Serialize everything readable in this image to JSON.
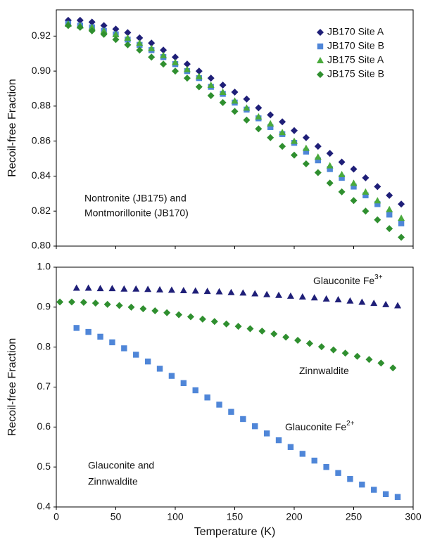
{
  "chart_data": [
    {
      "type": "scatter",
      "y_label": "Recoil-free Fraction",
      "annotation": [
        "Nontronite (JB175) and",
        "Montmorillonite (JB170)"
      ],
      "legend": "upper right",
      "x": [
        10,
        20,
        30,
        40,
        50,
        60,
        70,
        80,
        90,
        100,
        110,
        120,
        130,
        140,
        150,
        160,
        170,
        180,
        190,
        200,
        210,
        220,
        230,
        240,
        250,
        260,
        270,
        280,
        290
      ],
      "series": [
        {
          "name": "JB170 Site A",
          "color": "#1f1f78",
          "marker": "diamond",
          "values": [
            0.929,
            0.929,
            0.928,
            0.926,
            0.924,
            0.922,
            0.919,
            0.916,
            0.912,
            0.908,
            0.904,
            0.9,
            0.896,
            0.892,
            0.888,
            0.884,
            0.879,
            0.875,
            0.871,
            0.866,
            0.862,
            0.857,
            0.853,
            0.848,
            0.844,
            0.839,
            0.834,
            0.829,
            0.824
          ]
        },
        {
          "name": "JB170 Site B",
          "color": "#4f86d8",
          "marker": "square",
          "values": [
            0.927,
            0.926,
            0.925,
            0.923,
            0.921,
            0.918,
            0.915,
            0.912,
            0.908,
            0.904,
            0.9,
            0.896,
            0.891,
            0.887,
            0.882,
            0.878,
            0.873,
            0.868,
            0.864,
            0.859,
            0.854,
            0.849,
            0.844,
            0.839,
            0.834,
            0.829,
            0.824,
            0.818,
            0.813
          ]
        },
        {
          "name": "JB175 Site A",
          "color": "#4aaa3c",
          "marker": "triangle",
          "values": [
            0.927,
            0.926,
            0.925,
            0.923,
            0.921,
            0.919,
            0.916,
            0.913,
            0.909,
            0.905,
            0.901,
            0.897,
            0.892,
            0.888,
            0.883,
            0.879,
            0.874,
            0.87,
            0.865,
            0.86,
            0.856,
            0.851,
            0.846,
            0.841,
            0.836,
            0.831,
            0.826,
            0.821,
            0.816
          ]
        },
        {
          "name": "JB175 Site B",
          "color": "#2f8f2f",
          "marker": "diamond",
          "values": [
            0.926,
            0.925,
            0.923,
            0.921,
            0.918,
            0.915,
            0.912,
            0.908,
            0.904,
            0.9,
            0.896,
            0.891,
            0.886,
            0.882,
            0.877,
            0.872,
            0.867,
            0.862,
            0.857,
            0.852,
            0.847,
            0.842,
            0.836,
            0.831,
            0.826,
            0.82,
            0.815,
            0.81,
            0.805
          ]
        }
      ],
      "xlim": [
        0,
        300
      ],
      "xticks": [
        0,
        50,
        100,
        150,
        200,
        250,
        300
      ],
      "ylim": [
        0.8,
        0.935
      ],
      "yticks": [
        {
          "value": 0.8,
          "label": "0.80"
        },
        0.82,
        0.84,
        0.86,
        0.88,
        {
          "value": 0.9,
          "label": "0.90"
        },
        0.92
      ]
    },
    {
      "type": "scatter",
      "y_label": "Recoil-free Fraction",
      "x_label": "Temperature (K)",
      "annotation": [
        "Glauconite and",
        "Zinnwaldite"
      ],
      "series": [
        {
          "name": "Glauconite Fe",
          "name_superscript": "3+",
          "color": "#1f1f78",
          "marker": "triangle",
          "x": [
            17,
            27,
            37,
            47,
            57,
            67,
            77,
            87,
            97,
            107,
            117,
            127,
            137,
            147,
            157,
            167,
            177,
            187,
            197,
            207,
            217,
            227,
            237,
            247,
            257,
            267,
            277,
            287
          ],
          "values": [
            0.948,
            0.948,
            0.947,
            0.947,
            0.946,
            0.946,
            0.945,
            0.944,
            0.943,
            0.942,
            0.941,
            0.94,
            0.939,
            0.937,
            0.936,
            0.934,
            0.932,
            0.93,
            0.928,
            0.926,
            0.924,
            0.921,
            0.919,
            0.916,
            0.913,
            0.91,
            0.907,
            0.904
          ]
        },
        {
          "name": "Zinnwaldite",
          "color": "#2f8f2f",
          "marker": "diamond",
          "x": [
            3,
            13,
            23,
            33,
            43,
            53,
            63,
            73,
            83,
            93,
            103,
            113,
            123,
            133,
            143,
            153,
            163,
            173,
            183,
            193,
            203,
            213,
            223,
            233,
            243,
            253,
            263,
            273,
            283
          ],
          "values": [
            0.913,
            0.913,
            0.912,
            0.91,
            0.907,
            0.904,
            0.9,
            0.896,
            0.891,
            0.886,
            0.881,
            0.876,
            0.87,
            0.864,
            0.858,
            0.852,
            0.846,
            0.84,
            0.833,
            0.825,
            0.817,
            0.809,
            0.801,
            0.793,
            0.785,
            0.777,
            0.769,
            0.76,
            0.748
          ]
        },
        {
          "name": "Glauconite Fe",
          "name_superscript": "2+",
          "color": "#4f86d8",
          "marker": "square",
          "x": [
            17,
            27,
            37,
            47,
            57,
            67,
            77,
            87,
            97,
            107,
            117,
            127,
            137,
            147,
            157,
            167,
            177,
            187,
            197,
            207,
            217,
            227,
            237,
            247,
            257,
            267,
            277,
            287
          ],
          "values": [
            0.848,
            0.838,
            0.826,
            0.812,
            0.797,
            0.781,
            0.764,
            0.746,
            0.728,
            0.71,
            0.692,
            0.674,
            0.656,
            0.638,
            0.62,
            0.602,
            0.584,
            0.567,
            0.55,
            0.533,
            0.516,
            0.5,
            0.485,
            0.47,
            0.456,
            0.443,
            0.432,
            0.425
          ]
        }
      ],
      "xlim": [
        0,
        300
      ],
      "xticks": [
        0,
        50,
        100,
        150,
        200,
        250,
        300
      ],
      "ylim": [
        0.4,
        1.0
      ],
      "yticks": [
        0.4,
        0.5,
        0.6,
        0.7,
        0.8,
        0.9,
        {
          "value": 1.0,
          "label": "1.0"
        }
      ]
    }
  ]
}
